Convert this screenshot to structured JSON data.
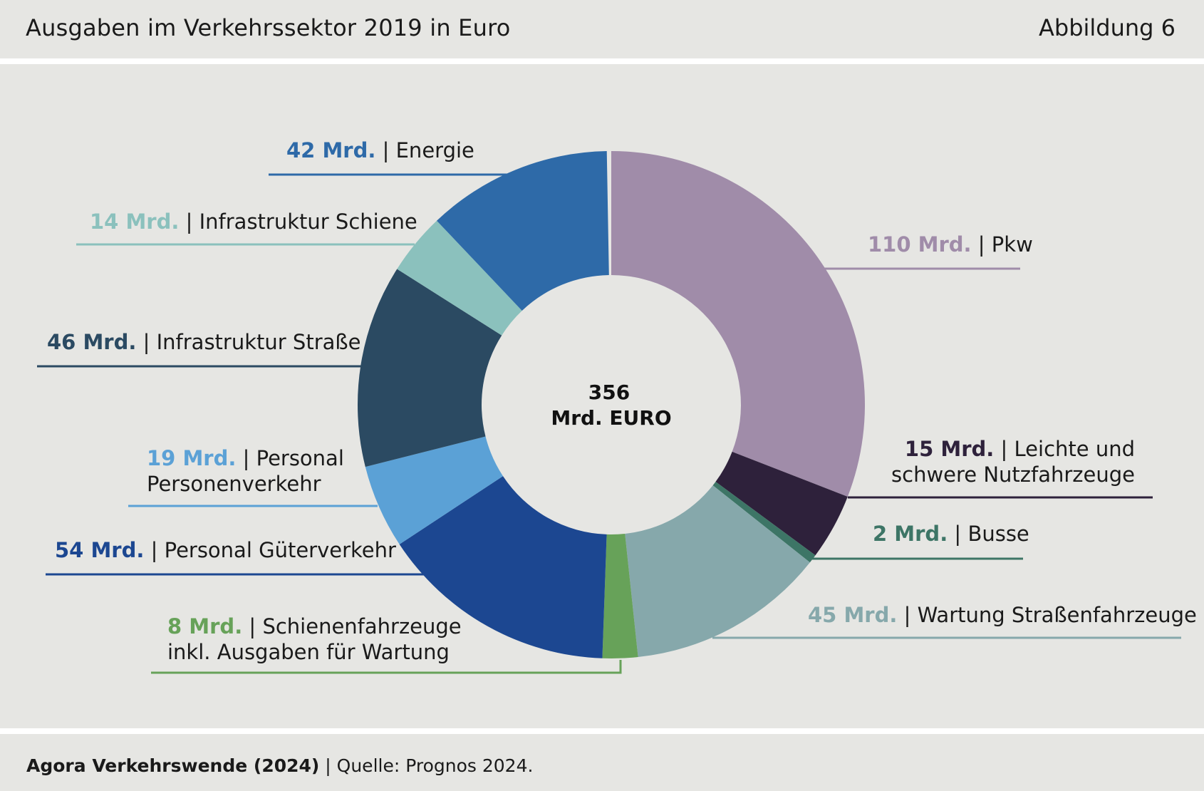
{
  "header": {
    "title": "Ausgaben im Verkehrssektor 2019 in Euro",
    "figure_label": "Abbildung 6"
  },
  "footer": {
    "source_bold": "Agora Verkehrswende (2024)",
    "source_rest": " | Quelle: Prognos 2024."
  },
  "chart_data": {
    "type": "pie",
    "variant": "donut",
    "title": "Ausgaben im Verkehrssektor 2019 in Euro",
    "center_value": "356",
    "center_unit": "Mrd. EURO",
    "total": 356,
    "unit": "Mrd.",
    "label_separator": " | ",
    "slices": [
      {
        "value_label": "110 Mrd.",
        "value": 110,
        "label_lines": [
          "Pkw"
        ],
        "color": "#a08ca9"
      },
      {
        "value_label": "15 Mrd.",
        "value": 15,
        "label_lines": [
          "Leichte und",
          "schwere Nutzfahrzeuge"
        ],
        "color": "#2e213b"
      },
      {
        "value_label": "2 Mrd.",
        "value": 2,
        "label_lines": [
          "Busse"
        ],
        "color": "#3d7566"
      },
      {
        "value_label": "45 Mrd.",
        "value": 45,
        "label_lines": [
          "Wartung Straßenfahrzeuge"
        ],
        "color": "#86a8ab"
      },
      {
        "value_label": "8 Mrd.",
        "value": 8,
        "label_lines": [
          "Schienenfahrzeuge",
          "inkl. Ausgaben für Wartung"
        ],
        "color": "#67a259"
      },
      {
        "value_label": "54 Mrd.",
        "value": 54,
        "label_lines": [
          "Personal Güterverkehr"
        ],
        "color": "#1c4791"
      },
      {
        "value_label": "19 Mrd.",
        "value": 19,
        "label_lines": [
          "Personal",
          "Personenverkehr"
        ],
        "color": "#5ba1d6"
      },
      {
        "value_label": "46 Mrd.",
        "value": 46,
        "label_lines": [
          "Infrastruktur Straße"
        ],
        "color": "#2b4a62"
      },
      {
        "value_label": "14 Mrd.",
        "value": 14,
        "label_lines": [
          "Infrastruktur Schiene"
        ],
        "color": "#8bc1bd"
      },
      {
        "value_label": "42 Mrd.",
        "value": 42,
        "label_lines": [
          "Energie"
        ],
        "color": "#2e6aa8"
      }
    ]
  }
}
